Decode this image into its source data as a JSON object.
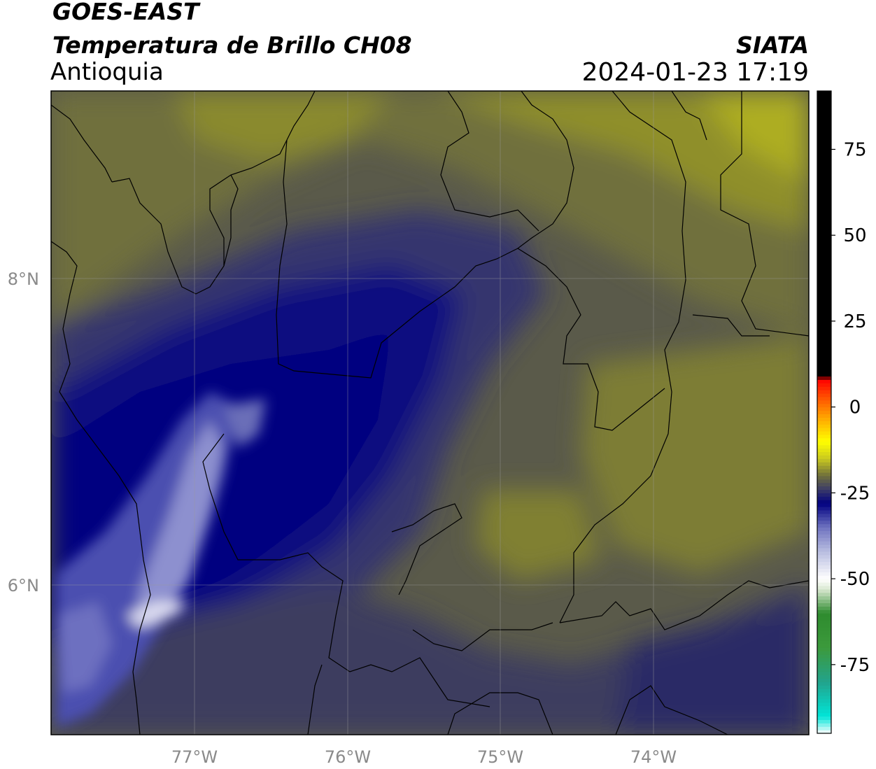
{
  "header": {
    "satellite": "GOES-EAST",
    "product": "Temperatura de Brillo CH08",
    "region": "Antioquia",
    "agency": "SIATA",
    "datetime": "2024-01-23 17:19"
  },
  "map": {
    "lon_ticks": [
      {
        "value": -77,
        "label": "77°W"
      },
      {
        "value": -76,
        "label": "76°W"
      },
      {
        "value": -75,
        "label": "75°W"
      },
      {
        "value": -74,
        "label": "74°W"
      }
    ],
    "lat_ticks": [
      {
        "value": 8,
        "label": "8°N"
      },
      {
        "value": 6,
        "label": "6°N"
      }
    ],
    "gridlines": true
  },
  "colorbar": {
    "range": [
      -95,
      92
    ],
    "ticks": [
      {
        "value": 75,
        "label": "75"
      },
      {
        "value": 50,
        "label": "50"
      },
      {
        "value": 25,
        "label": "25"
      },
      {
        "value": 0,
        "label": "0"
      },
      {
        "value": -25,
        "label": "-25"
      },
      {
        "value": -50,
        "label": "-50"
      },
      {
        "value": -75,
        "label": "-75"
      }
    ],
    "stops": [
      {
        "value": -95,
        "color": "#ffffff"
      },
      {
        "value": -90,
        "color": "#00e5d8"
      },
      {
        "value": -80,
        "color": "#22a38c"
      },
      {
        "value": -70,
        "color": "#3c9a3c"
      },
      {
        "value": -60,
        "color": "#2e8b2e"
      },
      {
        "value": -53,
        "color": "#d8e8d0"
      },
      {
        "value": -50,
        "color": "#ffffff"
      },
      {
        "value": -42,
        "color": "#b8bde0"
      },
      {
        "value": -35,
        "color": "#6f73c0"
      },
      {
        "value": -28,
        "color": "#000080"
      },
      {
        "value": -24,
        "color": "#3a3a68"
      },
      {
        "value": -20,
        "color": "#6e6e3c"
      },
      {
        "value": -15,
        "color": "#c8c820"
      },
      {
        "value": -10,
        "color": "#ffff00"
      },
      {
        "value": -3,
        "color": "#ffa500"
      },
      {
        "value": 4,
        "color": "#ff4000"
      },
      {
        "value": 8,
        "color": "#ff0000"
      },
      {
        "value": 9,
        "color": "#000000"
      },
      {
        "value": 92,
        "color": "#000000"
      }
    ]
  }
}
